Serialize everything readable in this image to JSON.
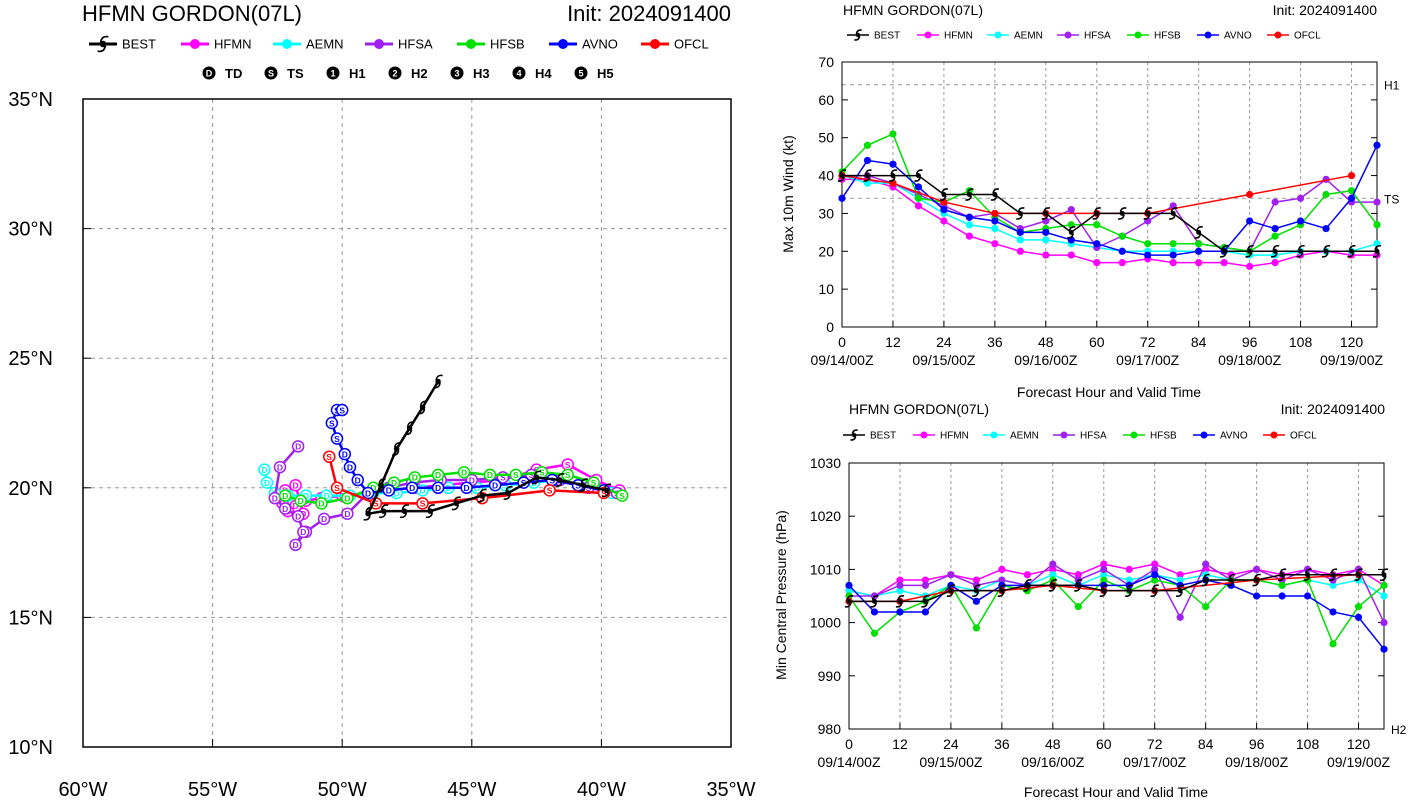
{
  "colors": {
    "BEST": "#000000",
    "HFMN": "#ff00ff",
    "AEMN": "#00ffff",
    "HFSA": "#a020f0",
    "HFSB": "#00e000",
    "AVNO": "#0000ff",
    "OFCL": "#ff0000"
  },
  "legend_models": [
    "BEST",
    "HFMN",
    "AEMN",
    "HFSA",
    "HFSB",
    "AVNO",
    "OFCL"
  ],
  "intensity_legend": [
    {
      "glyph": "D",
      "label": "TD"
    },
    {
      "glyph": "S",
      "label": "TS"
    },
    {
      "glyph": "1",
      "label": "H1"
    },
    {
      "glyph": "2",
      "label": "H2"
    },
    {
      "glyph": "3",
      "label": "H3"
    },
    {
      "glyph": "4",
      "label": "H4"
    },
    {
      "glyph": "5",
      "label": "H5"
    }
  ],
  "chart_data": [
    {
      "type": "line",
      "kind": "track-map",
      "title": "HFMN GORDON(07L)",
      "init_label": "Init: 2024091400",
      "x_ticks": [
        "60°W",
        "55°W",
        "50°W",
        "45°W",
        "40°W",
        "35°W"
      ],
      "y_ticks": [
        "10°N",
        "15°N",
        "20°N",
        "25°N",
        "30°N",
        "35°N"
      ],
      "xlim": [
        -60,
        -35
      ],
      "ylim": [
        10,
        35
      ],
      "grid": true,
      "series": [
        {
          "name": "HFMN",
          "color": "#ff00ff",
          "lon": [
            -39.3,
            -40.2,
            -41.3,
            -42.5,
            -43.8,
            -45.0,
            -46.2,
            -47.2,
            -48.2,
            -49.0,
            -50.0,
            -50.8,
            -51.4,
            -51.8,
            -52.1,
            -52.3,
            -52.2,
            -51.8,
            -51.5
          ],
          "lat": [
            19.9,
            20.3,
            20.9,
            20.7,
            20.3,
            20.2,
            20.1,
            20.0,
            19.9,
            19.8,
            19.7,
            19.6,
            19.5,
            19.3,
            19.1,
            19.4,
            19.9,
            20.1,
            19.0
          ],
          "sym": [
            "S",
            "S",
            "S",
            "S",
            "D",
            "D",
            "D",
            "D",
            "D",
            "D",
            "D",
            "D",
            "D",
            "D",
            "D",
            "D",
            "D",
            "D",
            "D"
          ]
        },
        {
          "name": "AEMN",
          "color": "#00ffff",
          "lon": [
            -39.6,
            -40.7,
            -41.7,
            -42.6,
            -43.7,
            -44.8,
            -45.9,
            -46.9,
            -47.9,
            -48.8,
            -49.7,
            -50.6,
            -51.4,
            -52.1,
            -52.6,
            -52.9,
            -53.0
          ],
          "lat": [
            19.8,
            20.1,
            20.3,
            20.2,
            20.1,
            20.0,
            20.0,
            19.9,
            19.8,
            19.8,
            19.7,
            19.7,
            19.7,
            19.7,
            19.8,
            20.2,
            20.7
          ],
          "sym": [
            "S",
            "S",
            "S",
            "S",
            "S",
            "D",
            "D",
            "D",
            "D",
            "D",
            "D",
            "D",
            "D",
            "D",
            "D",
            "D",
            "D"
          ]
        },
        {
          "name": "HFSA",
          "color": "#a020f0",
          "lon": [
            -39.4,
            -40.5,
            -41.6,
            -42.7,
            -43.8,
            -45.0,
            -46.2,
            -47.3,
            -48.2,
            -49.0,
            -49.8,
            -50.7,
            -51.4,
            -51.8,
            -51.5,
            -51.7,
            -52.2,
            -52.6,
            -52.4,
            -51.7
          ],
          "lat": [
            19.8,
            20.0,
            20.3,
            20.5,
            20.4,
            20.3,
            20.3,
            20.2,
            20.0,
            19.8,
            19.0,
            18.8,
            18.3,
            17.8,
            18.3,
            18.9,
            19.2,
            19.6,
            20.8,
            21.6
          ],
          "sym": [
            "S",
            "S",
            "S",
            "S",
            "S",
            "D",
            "D",
            "D",
            "D",
            "D",
            "D",
            "D",
            "D",
            "D",
            "D",
            "D",
            "D",
            "D",
            "D",
            "D"
          ]
        },
        {
          "name": "HFSB",
          "color": "#00e000",
          "lon": [
            -39.2,
            -40.3,
            -41.3,
            -42.3,
            -43.3,
            -44.3,
            -45.3,
            -46.3,
            -47.2,
            -48.0,
            -48.8,
            -49.8,
            -50.8,
            -51.6,
            -52.2
          ],
          "lat": [
            19.7,
            20.2,
            20.5,
            20.6,
            20.5,
            20.5,
            20.6,
            20.5,
            20.4,
            20.2,
            20.0,
            19.6,
            19.4,
            19.5,
            19.7
          ],
          "sym": [
            "S",
            "S",
            "S",
            "S",
            "S",
            "D",
            "D",
            "D",
            "D",
            "D",
            "D",
            "D",
            "D",
            "D",
            "D"
          ]
        },
        {
          "name": "AVNO",
          "color": "#0000ff",
          "lon": [
            -39.9,
            -40.9,
            -41.9,
            -43.0,
            -44.1,
            -45.2,
            -46.3,
            -47.3,
            -48.2,
            -49.0,
            -49.4,
            -49.7,
            -49.9,
            -50.2,
            -50.4,
            -50.2,
            -50.0
          ],
          "lat": [
            19.9,
            20.1,
            20.3,
            20.2,
            20.1,
            20.0,
            20.0,
            20.0,
            19.9,
            19.8,
            20.3,
            20.8,
            21.3,
            21.9,
            22.5,
            23.0,
            23.0
          ],
          "sym": [
            "S",
            "S",
            "S",
            "S",
            "D",
            "D",
            "D",
            "D",
            "D",
            "D",
            "D",
            "D",
            "D",
            "S",
            "S",
            "S",
            "S"
          ]
        },
        {
          "name": "OFCL",
          "color": "#ff0000",
          "lon": [
            -39.9,
            -42.0,
            -44.6,
            -46.9,
            -48.7,
            -50.2,
            -50.5
          ],
          "lat": [
            19.8,
            19.9,
            19.6,
            19.4,
            19.4,
            20.0,
            21.2
          ],
          "sym": [
            "S",
            "S",
            "S",
            "S",
            "S",
            "S",
            "S"
          ]
        },
        {
          "name": "BEST",
          "color": "#000000",
          "lon": [
            -39.8,
            -40.7,
            -41.6,
            -42.5,
            -43.6,
            -44.6,
            -45.6,
            -46.6,
            -47.6,
            -48.4,
            -49.0,
            -48.5,
            -47.9,
            -47.4,
            -46.9,
            -46.3
          ],
          "lat": [
            19.9,
            20.1,
            20.3,
            20.4,
            19.8,
            19.7,
            19.4,
            19.1,
            19.1,
            19.1,
            19.0,
            20.1,
            21.5,
            22.3,
            23.1,
            24.1
          ],
          "sym": [
            "S",
            "S",
            "S",
            "S",
            "S",
            "S",
            "D",
            "D",
            "D",
            "D",
            "D",
            "D",
            "D",
            "D",
            "D",
            "D"
          ]
        }
      ]
    },
    {
      "type": "line",
      "title": "HFMN GORDON(07L)",
      "init_label": "Init: 2024091400",
      "xlabel": "Forecast Hour and Valid Time",
      "ylabel": "Max 10m Wind (kt)",
      "xlim": [
        0,
        126
      ],
      "ylim": [
        0,
        70
      ],
      "grid": true,
      "x_ticks": [
        0,
        12,
        24,
        36,
        48,
        60,
        72,
        84,
        96,
        108,
        120
      ],
      "y_ticks": [
        0,
        10,
        20,
        30,
        40,
        50,
        60,
        70
      ],
      "date_ticks": [
        {
          "x": 0,
          "label": "09/14/00Z"
        },
        {
          "x": 24,
          "label": "09/15/00Z"
        },
        {
          "x": 48,
          "label": "09/16/00Z"
        },
        {
          "x": 72,
          "label": "09/17/00Z"
        },
        {
          "x": 96,
          "label": "09/18/00Z"
        },
        {
          "x": 120,
          "label": "09/19/00Z"
        }
      ],
      "threshold_lines": [
        {
          "y": 64,
          "label": "H1"
        },
        {
          "y": 34,
          "label": "TS"
        }
      ],
      "x": [
        0,
        6,
        12,
        18,
        24,
        30,
        36,
        42,
        48,
        54,
        60,
        66,
        72,
        78,
        84,
        90,
        96,
        102,
        108,
        114,
        120,
        126
      ],
      "series": [
        {
          "name": "HFMN",
          "color": "#ff00ff",
          "values": [
            39,
            39,
            37,
            32,
            28,
            24,
            22,
            20,
            19,
            19,
            17,
            17,
            18,
            17,
            17,
            17,
            16,
            17,
            19,
            20,
            19,
            19
          ]
        },
        {
          "name": "AEMN",
          "color": "#00ffff",
          "values": [
            40,
            38,
            38,
            34,
            30,
            27,
            26,
            23,
            23,
            22,
            21,
            20,
            20,
            20,
            20,
            20,
            19,
            19,
            20,
            20,
            20,
            22
          ]
        },
        {
          "name": "HFSA",
          "color": "#a020f0",
          "values": [
            40,
            40,
            38,
            35,
            32,
            29,
            30,
            26,
            28,
            31,
            21,
            24,
            28,
            32,
            22,
            21,
            20,
            33,
            34,
            39,
            33,
            33
          ]
        },
        {
          "name": "HFSB",
          "color": "#00e000",
          "values": [
            41,
            48,
            51,
            34,
            33,
            36,
            29,
            25,
            26,
            27,
            27,
            24,
            22,
            22,
            22,
            21,
            20,
            24,
            27,
            35,
            36,
            27
          ]
        },
        {
          "name": "AVNO",
          "color": "#0000ff",
          "values": [
            34,
            44,
            43,
            37,
            31,
            29,
            28,
            25,
            25,
            23,
            22,
            20,
            19,
            19,
            20,
            20,
            28,
            26,
            28,
            26,
            34,
            48
          ]
        },
        {
          "name": "OFCL",
          "color": "#ff0000",
          "values": [
            40,
            null,
            38,
            null,
            33,
            null,
            30,
            null,
            30,
            null,
            30,
            null,
            30,
            null,
            null,
            null,
            35,
            null,
            null,
            null,
            40,
            null
          ]
        },
        {
          "name": "BEST",
          "color": "#000000",
          "values": [
            40,
            40,
            40,
            40,
            35,
            35,
            35,
            30,
            30,
            25,
            30,
            30,
            30,
            30,
            25,
            20,
            20,
            20,
            20,
            20,
            20,
            20
          ]
        }
      ]
    },
    {
      "type": "line",
      "title": "HFMN GORDON(07L)",
      "init_label": "Init: 2024091400",
      "xlabel": "Forecast Hour and Valid Time",
      "ylabel": "Min Central Pressure (hPa)",
      "xlim": [
        0,
        126
      ],
      "ylim": [
        980,
        1030
      ],
      "grid": true,
      "x_ticks": [
        0,
        12,
        24,
        36,
        48,
        60,
        72,
        84,
        96,
        108,
        120
      ],
      "y_ticks": [
        980,
        990,
        1000,
        1010,
        1020,
        1030
      ],
      "date_ticks": [
        {
          "x": 0,
          "label": "09/14/00Z"
        },
        {
          "x": 24,
          "label": "09/15/00Z"
        },
        {
          "x": 48,
          "label": "09/16/00Z"
        },
        {
          "x": 72,
          "label": "09/17/00Z"
        },
        {
          "x": 96,
          "label": "09/18/00Z"
        },
        {
          "x": 120,
          "label": "09/19/00Z"
        }
      ],
      "threshold_lines": [
        {
          "y": 979,
          "label": "H2"
        }
      ],
      "x": [
        0,
        6,
        12,
        18,
        24,
        30,
        36,
        42,
        48,
        54,
        60,
        66,
        72,
        78,
        84,
        90,
        96,
        102,
        108,
        114,
        120,
        126
      ],
      "series": [
        {
          "name": "HFMN",
          "color": "#ff00ff",
          "values": [
            1006,
            1005,
            1008,
            1008,
            1009,
            1008,
            1010,
            1009,
            1010,
            1009,
            1011,
            1010,
            1011,
            1009,
            1010,
            1009,
            1010,
            1009,
            1010,
            1009,
            1010,
            1007
          ]
        },
        {
          "name": "AEMN",
          "color": "#00ffff",
          "values": [
            1006,
            1005,
            1006,
            1005,
            1007,
            1006,
            1008,
            1007,
            1009,
            1007,
            1009,
            1008,
            1009,
            1008,
            1009,
            1008,
            1008,
            1007,
            1008,
            1007,
            1008,
            1005
          ]
        },
        {
          "name": "HFSA",
          "color": "#a020f0",
          "values": [
            1005,
            1005,
            1007,
            1007,
            1009,
            1007,
            1008,
            1007,
            1011,
            1008,
            1010,
            1007,
            1010,
            1001,
            1011,
            1008,
            1010,
            1008,
            1010,
            1008,
            1010,
            1000
          ]
        },
        {
          "name": "HFSB",
          "color": "#00e000",
          "values": [
            1005,
            998,
            1002,
            1004,
            1007,
            999,
            1007,
            1006,
            1008,
            1003,
            1008,
            1006,
            1008,
            1007,
            1003,
            1008,
            1008,
            1007,
            1008,
            996,
            1003,
            1007
          ]
        },
        {
          "name": "AVNO",
          "color": "#0000ff",
          "values": [
            1007,
            1002,
            1002,
            1002,
            1007,
            1004,
            1007,
            1007,
            1007,
            1007,
            1007,
            1007,
            1009,
            1007,
            1008,
            1007,
            1005,
            1005,
            1005,
            1002,
            1001,
            995
          ]
        },
        {
          "name": "OFCL",
          "color": "#ff0000",
          "values": [
            1004,
            null,
            1004,
            null,
            1006,
            null,
            1006,
            null,
            1007,
            null,
            1006,
            null,
            1006,
            null,
            null,
            null,
            1008,
            null,
            null,
            null,
            1009,
            null
          ]
        },
        {
          "name": "BEST",
          "color": "#000000",
          "values": [
            1004,
            1004,
            1004,
            1004,
            1006,
            1006,
            1006,
            1007,
            1007,
            1007,
            1006,
            1006,
            1006,
            1006,
            1008,
            1008,
            1008,
            1009,
            1009,
            1009,
            1009,
            1009
          ]
        }
      ]
    }
  ]
}
